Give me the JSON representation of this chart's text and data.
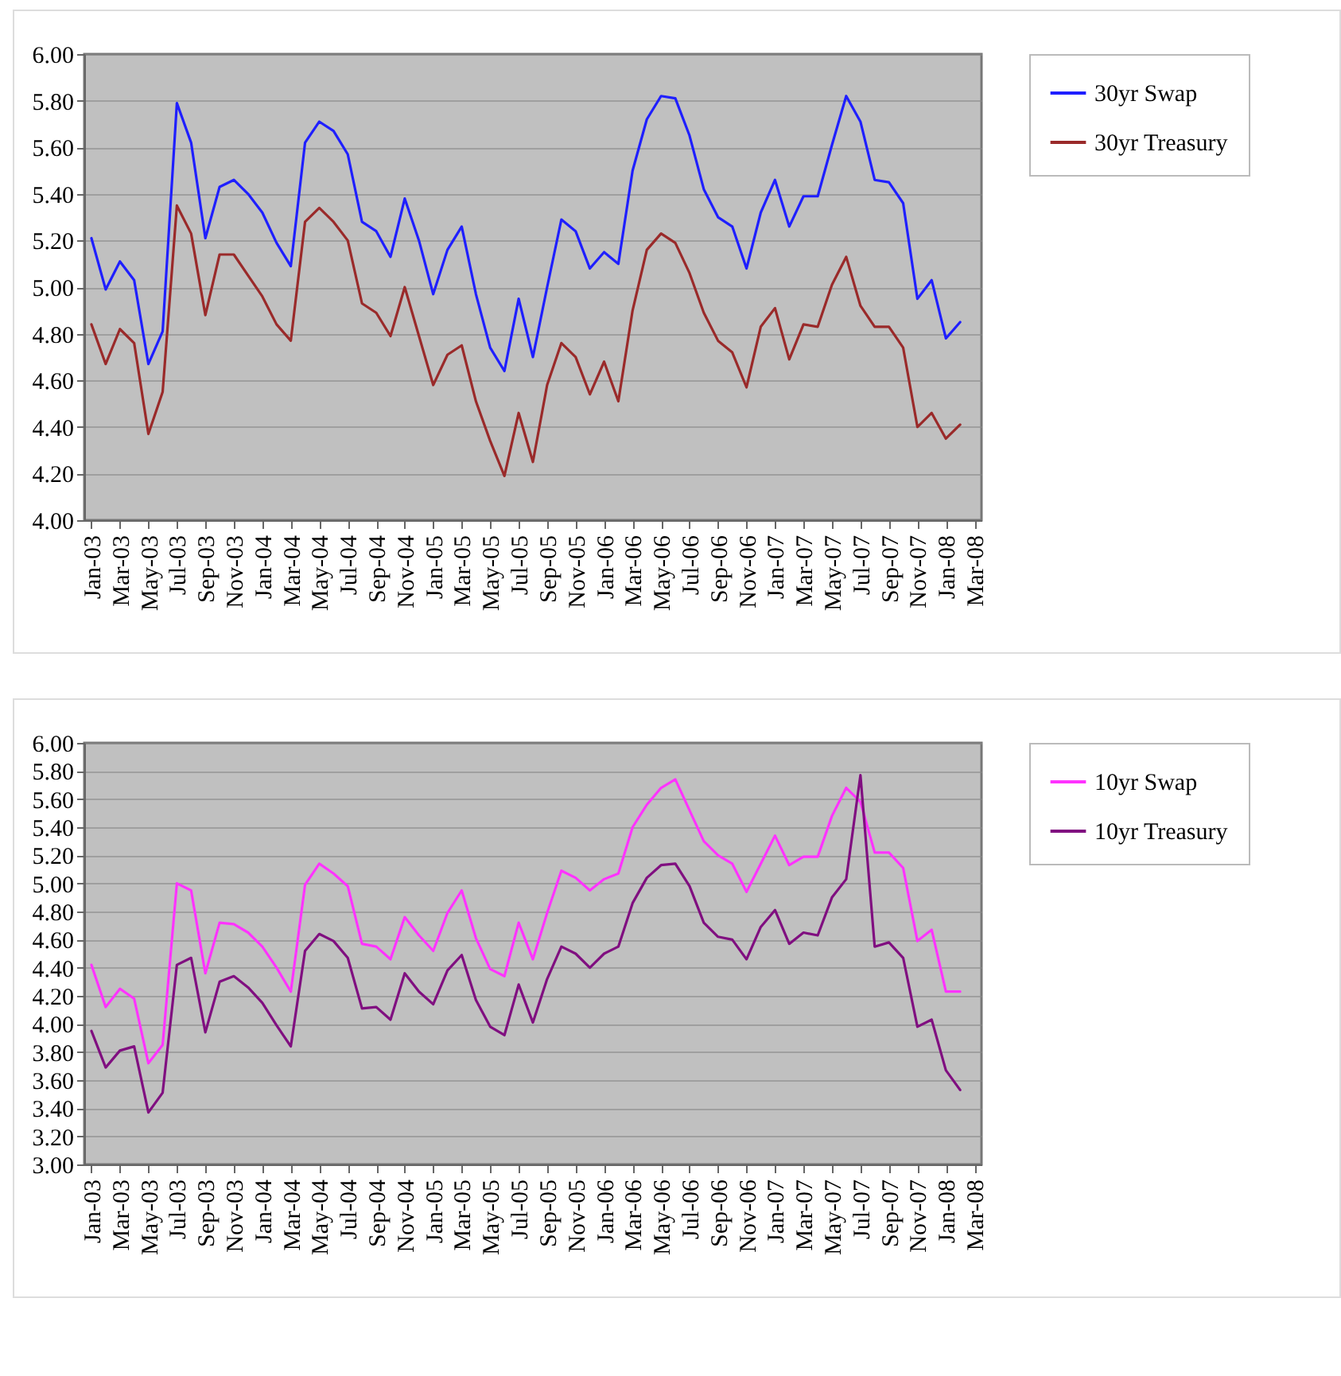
{
  "chart_data": [
    {
      "type": "line",
      "categories": [
        "Jan-03",
        null,
        "Mar-03",
        null,
        "May-03",
        null,
        "Jul-03",
        null,
        "Sep-03",
        null,
        "Nov-03",
        null,
        "Jan-04",
        null,
        "Mar-04",
        null,
        "May-04",
        null,
        "Jul-04",
        null,
        "Sep-04",
        null,
        "Nov-04",
        null,
        "Jan-05",
        null,
        "Mar-05",
        null,
        "May-05",
        null,
        "Jul-05",
        null,
        "Sep-05",
        null,
        "Nov-05",
        null,
        "Jan-06",
        null,
        "Mar-06",
        null,
        "May-06",
        null,
        "Jul-06",
        null,
        "Sep-06",
        null,
        "Nov-06",
        null,
        "Jan-07",
        null,
        "Mar-07",
        null,
        "May-07",
        null,
        "Jul-07",
        null,
        "Sep-07",
        null,
        "Nov-07",
        null,
        "Jan-08",
        null,
        "Mar-08"
      ],
      "series": [
        {
          "name": "30yr Swap",
          "color": "#1f1fff",
          "values": [
            5.21,
            4.99,
            5.11,
            5.03,
            4.67,
            4.81,
            5.79,
            5.62,
            5.21,
            5.43,
            5.46,
            5.4,
            5.32,
            5.19,
            5.09,
            5.62,
            5.71,
            5.67,
            5.57,
            5.28,
            5.24,
            5.13,
            5.38,
            5.2,
            4.97,
            5.16,
            5.26,
            4.97,
            4.74,
            4.64,
            4.95,
            4.7,
            5.0,
            5.29,
            5.24,
            5.08,
            5.15,
            5.1,
            5.5,
            5.72,
            5.82,
            5.81,
            5.65,
            5.42,
            5.3,
            5.26,
            5.08,
            5.32,
            5.46,
            5.26,
            5.39,
            5.39,
            5.61,
            5.82,
            5.71,
            5.46,
            5.45,
            5.36,
            4.95,
            5.03,
            4.78,
            4.85,
            null
          ]
        },
        {
          "name": "30yr Treasury",
          "color": "#9a2a2a",
          "values": [
            4.84,
            4.67,
            4.82,
            4.76,
            4.37,
            4.55,
            5.35,
            5.23,
            4.88,
            5.14,
            5.14,
            5.05,
            4.96,
            4.84,
            4.77,
            5.28,
            5.34,
            5.28,
            5.2,
            4.93,
            4.89,
            4.79,
            5.0,
            4.79,
            4.58,
            4.71,
            4.75,
            4.51,
            4.34,
            4.19,
            4.46,
            4.25,
            4.58,
            4.76,
            4.7,
            4.54,
            4.68,
            4.51,
            4.9,
            5.16,
            5.23,
            5.19,
            5.06,
            4.89,
            4.77,
            4.72,
            4.57,
            4.83,
            4.91,
            4.69,
            4.84,
            4.83,
            5.01,
            5.13,
            4.92,
            4.83,
            4.83,
            4.74,
            4.4,
            4.46,
            4.35,
            4.41,
            null
          ]
        }
      ],
      "ylim": [
        4,
        6
      ],
      "yticks": [
        {
          "value": 4,
          "label": "4.00"
        },
        {
          "value": 4.2,
          "label": "4.20"
        },
        {
          "value": 4.4,
          "label": "4.40"
        },
        {
          "value": 4.6,
          "label": "4.60"
        },
        {
          "value": 4.8,
          "label": "4.80"
        },
        {
          "value": 5,
          "label": "5.00"
        },
        {
          "value": 5.2,
          "label": "5.20"
        },
        {
          "value": 5.4,
          "label": "5.40"
        },
        {
          "value": 5.6,
          "label": "5.60"
        },
        {
          "value": 5.8,
          "label": "5.80"
        },
        {
          "value": 6,
          "label": "6.00"
        }
      ],
      "grid": "y",
      "legend": "right"
    },
    {
      "type": "line",
      "categories": [
        "Jan-03",
        null,
        "Mar-03",
        null,
        "May-03",
        null,
        "Jul-03",
        null,
        "Sep-03",
        null,
        "Nov-03",
        null,
        "Jan-04",
        null,
        "Mar-04",
        null,
        "May-04",
        null,
        "Jul-04",
        null,
        "Sep-04",
        null,
        "Nov-04",
        null,
        "Jan-05",
        null,
        "Mar-05",
        null,
        "May-05",
        null,
        "Jul-05",
        null,
        "Sep-05",
        null,
        "Nov-05",
        null,
        "Jan-06",
        null,
        "Mar-06",
        null,
        "May-06",
        null,
        "Jul-06",
        null,
        "Sep-06",
        null,
        "Nov-06",
        null,
        "Jan-07",
        null,
        "Mar-07",
        null,
        "May-07",
        null,
        "Jul-07",
        null,
        "Sep-07",
        null,
        "Nov-07",
        null,
        "Jan-08",
        null,
        "Mar-08"
      ],
      "series": [
        {
          "name": "10yr Swap",
          "color": "#ff33ff",
          "values": [
            4.42,
            4.12,
            4.25,
            4.18,
            3.72,
            3.85,
            5.0,
            4.95,
            4.36,
            4.72,
            4.71,
            4.65,
            4.55,
            4.4,
            4.23,
            4.99,
            5.14,
            5.07,
            4.98,
            4.57,
            4.55,
            4.46,
            4.76,
            4.63,
            4.52,
            4.79,
            4.95,
            4.61,
            4.39,
            4.34,
            4.72,
            4.46,
            4.79,
            5.09,
            5.04,
            4.95,
            5.03,
            5.07,
            5.4,
            5.56,
            5.68,
            5.74,
            5.52,
            5.3,
            5.2,
            5.14,
            4.94,
            5.14,
            5.34,
            5.13,
            5.19,
            5.19,
            5.48,
            5.68,
            5.58,
            5.22,
            5.22,
            5.11,
            4.59,
            4.67,
            4.23,
            4.23,
            null
          ]
        },
        {
          "name": "10yr Treasury",
          "color": "#800f80",
          "values": [
            3.95,
            3.69,
            3.81,
            3.84,
            3.37,
            3.51,
            4.42,
            4.47,
            3.94,
            4.3,
            4.34,
            4.26,
            4.15,
            3.99,
            3.84,
            4.52,
            4.64,
            4.59,
            4.47,
            4.11,
            4.12,
            4.03,
            4.36,
            4.23,
            4.14,
            4.38,
            4.49,
            4.17,
            3.98,
            3.92,
            4.28,
            4.01,
            4.32,
            4.55,
            4.5,
            4.4,
            4.5,
            4.55,
            4.86,
            5.04,
            5.13,
            5.14,
            4.98,
            4.72,
            4.62,
            4.6,
            4.46,
            4.69,
            4.81,
            4.57,
            4.65,
            4.63,
            4.9,
            5.03,
            5.77,
            4.55,
            4.58,
            4.47,
            3.98,
            4.03,
            3.67,
            3.53,
            null
          ]
        }
      ],
      "ylim": [
        3,
        6
      ],
      "yticks": [
        {
          "value": 3,
          "label": "3.00"
        },
        {
          "value": 3.2,
          "label": "3.20"
        },
        {
          "value": 3.4,
          "label": "3.40"
        },
        {
          "value": 3.6,
          "label": "3.60"
        },
        {
          "value": 3.8,
          "label": "3.80"
        },
        {
          "value": 4,
          "label": "4.00"
        },
        {
          "value": 4.2,
          "label": "4.20"
        },
        {
          "value": 4.4,
          "label": "4.40"
        },
        {
          "value": 4.6,
          "label": "4.60"
        },
        {
          "value": 4.8,
          "label": "4.80"
        },
        {
          "value": 5,
          "label": "5.00"
        },
        {
          "value": 5.2,
          "label": "5.20"
        },
        {
          "value": 5.4,
          "label": "5.40"
        },
        {
          "value": 5.6,
          "label": "5.60"
        },
        {
          "value": 5.8,
          "label": "5.80"
        },
        {
          "value": 6,
          "label": "6.00"
        }
      ],
      "grid": "y",
      "legend": "right"
    }
  ]
}
